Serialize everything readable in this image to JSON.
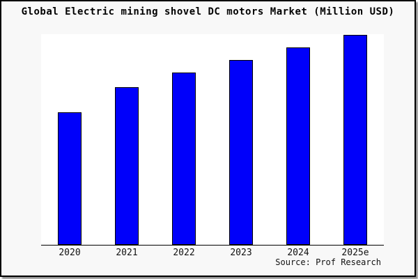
{
  "title": "Global Electric mining shovel DC motors Market (Million USD)",
  "source_label": "Source: Prof Research",
  "colors": {
    "bar_fill": "#0000fa",
    "bar_border": "#000000",
    "frame_background": "#f8f8f8",
    "plot_background": "#ffffff",
    "axis": "#000000",
    "frame_border": "#000000"
  },
  "chart_data": {
    "type": "bar",
    "title": "Global Electric mining shovel DC motors Market (Million USD)",
    "categories": [
      "2020",
      "2021",
      "2022",
      "2023",
      "2024",
      "2025e"
    ],
    "values": [
      63,
      75,
      82,
      88,
      94,
      100
    ],
    "values_note": "y-axis has no tick labels; values are estimated relative heights with 2025e = 100",
    "xlabel": "",
    "ylabel": "",
    "ylim": [
      0,
      100
    ],
    "grid": false,
    "legend": false,
    "y_axis_labels_visible": false,
    "source": "Source: Prof Research"
  }
}
